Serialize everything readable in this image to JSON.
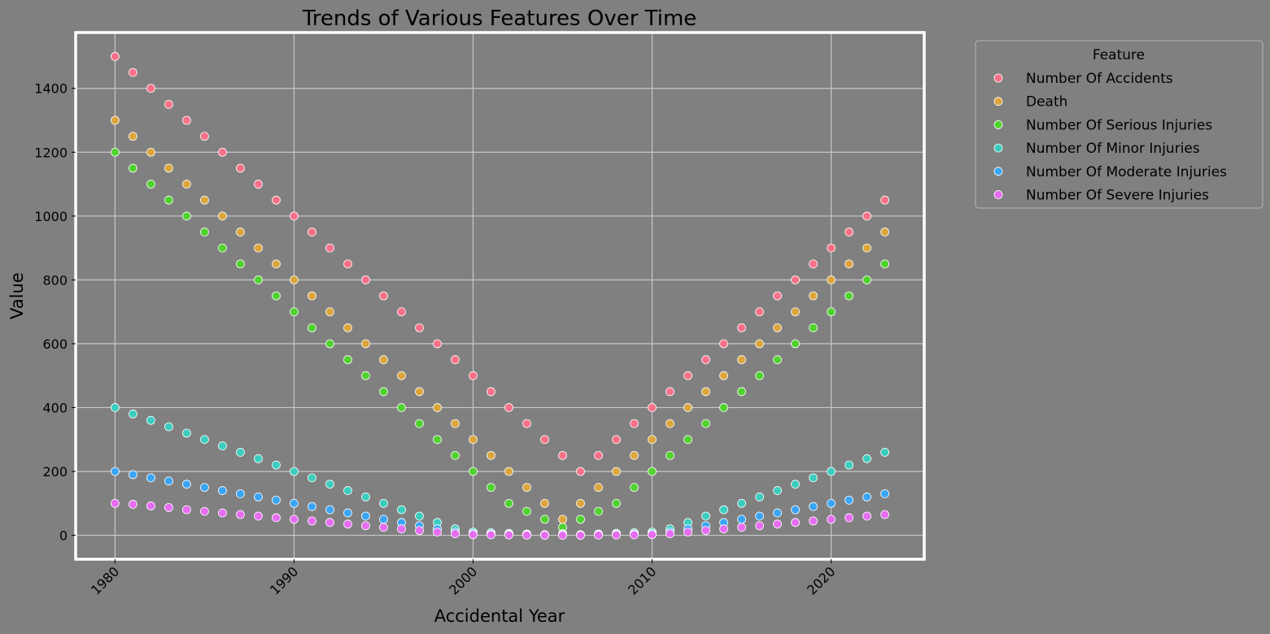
{
  "chart_data": {
    "type": "scatter",
    "title": "Trends of Various Features Over Time",
    "xlabel": "Accidental Year",
    "ylabel": "Value",
    "xlim": [
      1977.8,
      2025.2
    ],
    "ylim": [
      -75,
      1575
    ],
    "xticks": [
      1980,
      1990,
      2000,
      2010,
      2020
    ],
    "yticks": [
      0,
      200,
      400,
      600,
      800,
      1000,
      1200,
      1400
    ],
    "grid": true,
    "legend": {
      "title": "Feature",
      "placement": "outside-upper-right"
    },
    "x": [
      1980,
      1981,
      1982,
      1983,
      1984,
      1985,
      1986,
      1987,
      1988,
      1989,
      1990,
      1991,
      1992,
      1993,
      1994,
      1995,
      1996,
      1997,
      1998,
      1999,
      2000,
      2001,
      2002,
      2003,
      2004,
      2005,
      2006,
      2007,
      2008,
      2009,
      2010,
      2011,
      2012,
      2013,
      2014,
      2015,
      2016,
      2017,
      2018,
      2019,
      2020,
      2021,
      2022,
      2023
    ],
    "series": [
      {
        "name": "Number Of Accidents",
        "color": "#f77189",
        "values": [
          1500,
          1450,
          1400,
          1350,
          1300,
          1250,
          1200,
          1150,
          1100,
          1050,
          1000,
          950,
          900,
          850,
          800,
          750,
          700,
          650,
          600,
          550,
          500,
          450,
          400,
          350,
          300,
          250,
          200,
          250,
          300,
          350,
          400,
          450,
          500,
          550,
          600,
          650,
          700,
          750,
          800,
          850,
          900,
          950,
          1000,
          1050
        ]
      },
      {
        "name": "Death",
        "color": "#dca63d",
        "values": [
          1300,
          1250,
          1200,
          1150,
          1100,
          1050,
          1000,
          950,
          900,
          850,
          800,
          750,
          700,
          650,
          600,
          550,
          500,
          450,
          400,
          350,
          300,
          250,
          200,
          150,
          100,
          50,
          100,
          150,
          200,
          250,
          300,
          350,
          400,
          450,
          500,
          550,
          600,
          650,
          700,
          750,
          800,
          850,
          900,
          950
        ]
      },
      {
        "name": "Number Of Serious Injuries",
        "color": "#50d22f",
        "values": [
          1200,
          1150,
          1100,
          1050,
          1000,
          950,
          900,
          850,
          800,
          750,
          700,
          650,
          600,
          550,
          500,
          450,
          400,
          350,
          300,
          250,
          200,
          150,
          100,
          75,
          50,
          25,
          50,
          75,
          100,
          150,
          200,
          250,
          300,
          350,
          400,
          450,
          500,
          550,
          600,
          650,
          700,
          750,
          800,
          850
        ]
      },
      {
        "name": "Number Of Minor Injuries",
        "color": "#3ccdbf",
        "values": [
          400,
          380,
          360,
          340,
          320,
          300,
          280,
          260,
          240,
          220,
          200,
          180,
          160,
          140,
          120,
          100,
          80,
          60,
          40,
          20,
          10,
          8,
          6,
          4,
          2,
          5,
          2,
          4,
          6,
          8,
          10,
          20,
          40,
          60,
          80,
          100,
          120,
          140,
          160,
          180,
          200,
          220,
          240,
          260
        ]
      },
      {
        "name": "Number Of Moderate Injuries",
        "color": "#3aa5f4",
        "values": [
          200,
          190,
          180,
          170,
          160,
          150,
          140,
          130,
          120,
          110,
          100,
          90,
          80,
          70,
          60,
          50,
          40,
          30,
          20,
          10,
          5,
          4,
          3,
          2,
          1,
          2,
          1,
          2,
          3,
          4,
          5,
          10,
          20,
          30,
          40,
          50,
          60,
          70,
          80,
          90,
          100,
          110,
          120,
          130
        ]
      },
      {
        "name": "Number Of Severe Injuries",
        "color": "#e66cf1",
        "values": [
          100,
          97,
          92,
          87,
          80,
          75,
          70,
          65,
          60,
          55,
          50,
          45,
          40,
          35,
          30,
          25,
          20,
          15,
          10,
          5,
          2,
          1.5,
          1,
          0.5,
          0,
          0,
          0,
          0.5,
          1,
          1.5,
          2,
          5,
          10,
          15,
          20,
          25,
          30,
          35,
          40,
          45,
          50,
          55,
          60,
          65
        ]
      }
    ]
  }
}
